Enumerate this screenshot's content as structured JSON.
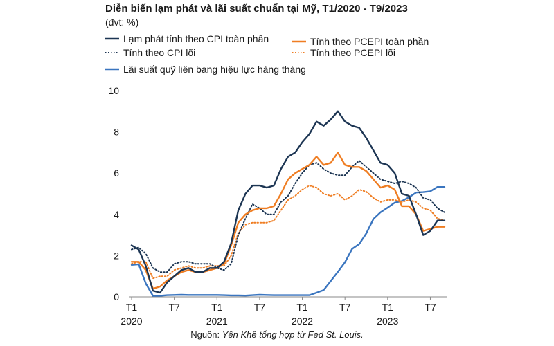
{
  "header": {
    "title": "Diễn biến lạm phát và lãi suất chuẩn tại Mỹ, T1/2020 - T9/2023",
    "unit": "(đvt: %)"
  },
  "source": {
    "prefix": "Nguồn: ",
    "text": "Yên Khê tổng hợp từ Fed St. Louis."
  },
  "colors": {
    "cpi": "#1c3553",
    "pcepi": "#ef7d22",
    "fed": "#3a75bf"
  },
  "chart_data": {
    "type": "line",
    "title": "Diễn biến lạm phát và lãi suất chuẩn tại Mỹ, T1/2020 - T9/2023",
    "subtitle": "(đvt: %)",
    "xlabel": "",
    "ylabel": "",
    "ylim": [
      0,
      10
    ],
    "yticks": [
      0,
      2,
      4,
      6,
      8,
      10
    ],
    "grid": false,
    "legend": "top-left",
    "x_ticks": [
      {
        "index": 0,
        "label": "T1",
        "year": "2020"
      },
      {
        "index": 6,
        "label": "T7",
        "year": ""
      },
      {
        "index": 12,
        "label": "T1",
        "year": "2021"
      },
      {
        "index": 18,
        "label": "T7",
        "year": ""
      },
      {
        "index": 24,
        "label": "T1",
        "year": "2022"
      },
      {
        "index": 30,
        "label": "T7",
        "year": ""
      },
      {
        "index": 36,
        "label": "T1",
        "year": "2023"
      },
      {
        "index": 42,
        "label": "T7",
        "year": ""
      }
    ],
    "x": [
      "2020-01",
      "2020-02",
      "2020-03",
      "2020-04",
      "2020-05",
      "2020-06",
      "2020-07",
      "2020-08",
      "2020-09",
      "2020-10",
      "2020-11",
      "2020-12",
      "2021-01",
      "2021-02",
      "2021-03",
      "2021-04",
      "2021-05",
      "2021-06",
      "2021-07",
      "2021-08",
      "2021-09",
      "2021-10",
      "2021-11",
      "2021-12",
      "2022-01",
      "2022-02",
      "2022-03",
      "2022-04",
      "2022-05",
      "2022-06",
      "2022-07",
      "2022-08",
      "2022-09",
      "2022-10",
      "2022-11",
      "2022-12",
      "2023-01",
      "2023-02",
      "2023-03",
      "2023-04",
      "2023-05",
      "2023-06",
      "2023-07",
      "2023-08",
      "2023-09"
    ],
    "series": [
      {
        "name": "Lạm phát tính theo CPI toàn phần",
        "color": "#1c3553",
        "style": "solid",
        "values": [
          2.5,
          2.3,
          1.5,
          0.3,
          0.2,
          0.7,
          1.0,
          1.3,
          1.4,
          1.2,
          1.2,
          1.4,
          1.4,
          1.7,
          2.6,
          4.2,
          5.0,
          5.4,
          5.4,
          5.3,
          5.4,
          6.2,
          6.8,
          7.0,
          7.5,
          7.9,
          8.5,
          8.3,
          8.6,
          9.0,
          8.5,
          8.3,
          8.2,
          7.7,
          7.1,
          6.5,
          6.4,
          6.0,
          5.0,
          4.9,
          4.0,
          3.0,
          3.2,
          3.7,
          3.7
        ]
      },
      {
        "name": "Tính theo CPI lõi",
        "color": "#1c3553",
        "style": "dotted",
        "values": [
          2.3,
          2.4,
          2.1,
          1.4,
          1.2,
          1.2,
          1.6,
          1.7,
          1.7,
          1.6,
          1.6,
          1.6,
          1.4,
          1.3,
          1.6,
          3.0,
          3.8,
          4.5,
          4.3,
          4.0,
          4.0,
          4.6,
          4.9,
          5.5,
          6.0,
          6.4,
          6.5,
          6.2,
          6.0,
          5.9,
          5.9,
          6.3,
          6.6,
          6.3,
          6.0,
          5.7,
          5.6,
          5.5,
          5.6,
          5.5,
          5.3,
          4.8,
          4.7,
          4.3,
          4.1
        ]
      },
      {
        "name": "Tính theo PCEPI toàn phần",
        "color": "#ef7d22",
        "style": "solid",
        "values": [
          1.7,
          1.7,
          1.3,
          0.4,
          0.5,
          0.8,
          1.0,
          1.2,
          1.3,
          1.2,
          1.2,
          1.3,
          1.4,
          1.6,
          2.5,
          3.6,
          4.0,
          4.2,
          4.3,
          4.3,
          4.4,
          5.0,
          5.7,
          6.0,
          6.2,
          6.4,
          6.8,
          6.4,
          6.5,
          7.0,
          6.4,
          6.3,
          6.3,
          6.1,
          5.7,
          5.3,
          5.4,
          5.2,
          4.4,
          4.4,
          4.0,
          3.2,
          3.3,
          3.4,
          3.4
        ]
      },
      {
        "name": "Tính theo PCEPI lõi",
        "color": "#ef7d22",
        "style": "dotted",
        "values": [
          1.6,
          1.7,
          1.7,
          0.9,
          1.0,
          1.0,
          1.3,
          1.4,
          1.5,
          1.4,
          1.4,
          1.5,
          1.5,
          1.5,
          2.0,
          3.1,
          3.5,
          3.6,
          3.6,
          3.6,
          3.7,
          4.2,
          4.7,
          4.9,
          5.2,
          5.4,
          5.3,
          5.0,
          4.9,
          5.0,
          4.7,
          4.9,
          5.2,
          5.1,
          4.8,
          4.6,
          4.7,
          4.7,
          4.6,
          4.7,
          4.6,
          4.3,
          4.2,
          3.8,
          3.7
        ]
      },
      {
        "name": "Lãi suất quỹ liên bang hiệu lực hàng tháng",
        "color": "#3a75bf",
        "style": "solid",
        "values": [
          1.55,
          1.58,
          0.65,
          0.05,
          0.05,
          0.08,
          0.09,
          0.1,
          0.09,
          0.09,
          0.09,
          0.09,
          0.09,
          0.08,
          0.07,
          0.07,
          0.06,
          0.08,
          0.1,
          0.09,
          0.08,
          0.08,
          0.08,
          0.08,
          0.08,
          0.08,
          0.2,
          0.33,
          0.77,
          1.21,
          1.68,
          2.33,
          2.56,
          3.08,
          3.78,
          4.1,
          4.33,
          4.57,
          4.65,
          4.83,
          5.06,
          5.08,
          5.12,
          5.33,
          5.33
        ]
      }
    ]
  }
}
